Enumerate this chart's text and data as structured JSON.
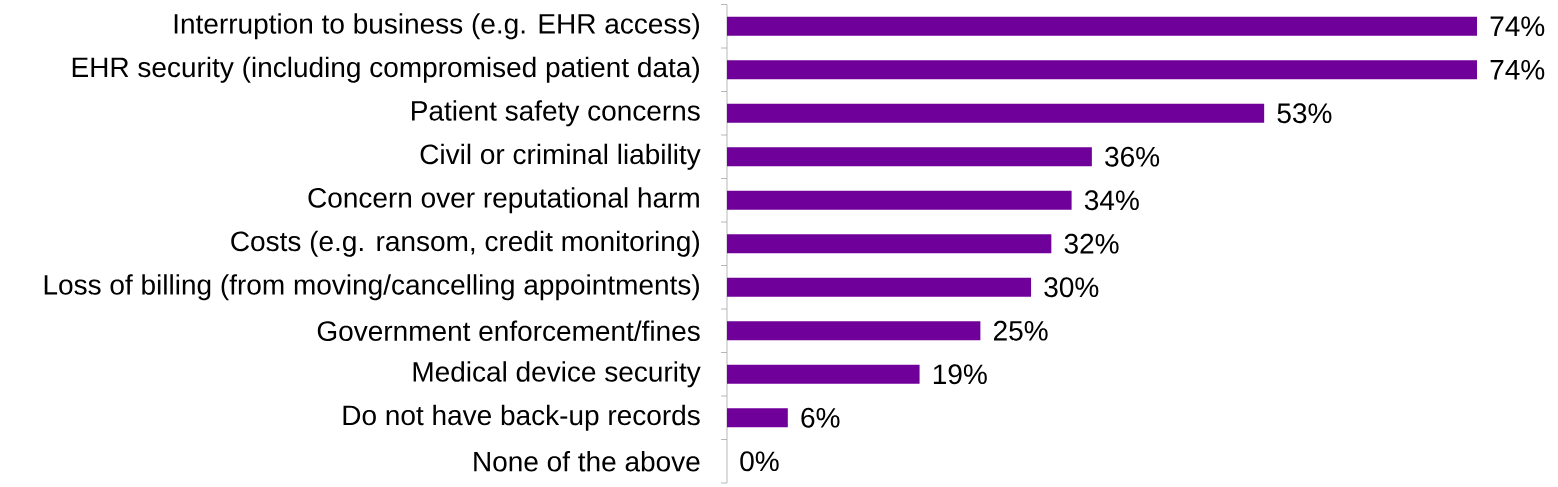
{
  "chart_data": {
    "type": "bar",
    "orientation": "horizontal",
    "color": "#70009a",
    "categories": [
      "Interruption to business (e.g. EHR access)",
      "EHR security (including compromised patient data)",
      "Patient safety concerns",
      "Civil or criminal liability",
      "Concern over reputational harm",
      "Costs (e.g. ransom, credit monitoring)",
      "Loss of billing (from moving/cancelling appointments)",
      "Government enforcement/fines",
      "Medical device security",
      "Do not have back-up records",
      "None of the above"
    ],
    "values": [
      74,
      74,
      53,
      36,
      34,
      32,
      30,
      25,
      19,
      6,
      0
    ],
    "value_labels": [
      "74%",
      "74%",
      "53%",
      "36%",
      "34%",
      "32%",
      "30%",
      "25%",
      "19%",
      "6%",
      "0%"
    ],
    "tick_labels": "y"
  }
}
